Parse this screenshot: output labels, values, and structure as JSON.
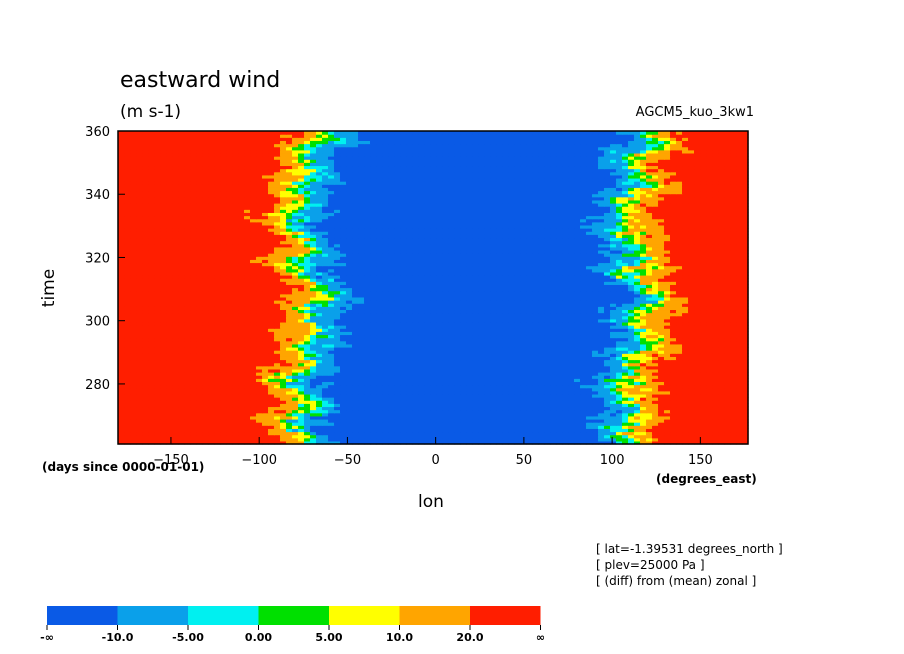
{
  "chart_data": {
    "type": "heatmap",
    "title": "eastward wind",
    "units": "(m s-1)",
    "model": "AGCM5_kuo_3kw1",
    "xlabel": "lon",
    "ylabel": "time",
    "x_units": "(degrees_east)",
    "y_units": "(days since 0000-01-01)",
    "xlim": [
      -180,
      177
    ],
    "ylim": [
      261,
      360
    ],
    "x_ticks": [
      -150,
      -100,
      -50,
      0,
      50,
      100,
      150
    ],
    "y_ticks": [
      280,
      300,
      320,
      340,
      360
    ],
    "levels": [
      "-∞",
      "-10.0",
      "-5.00",
      "0.00",
      "5.00",
      "10.0",
      "20.0",
      "∞"
    ],
    "level_colors": [
      "#0a5ae6",
      "#0aa0ea",
      "#00f0f0",
      "#00e000",
      "#ffff00",
      "#ffa500",
      "#ff1e00"
    ],
    "annotations": [
      "[ lat=-1.39531 degrees_north ]",
      "[ plev=25000 Pa ]",
      "[ (diff) from (mean) zonal ]"
    ],
    "grid": false
  }
}
